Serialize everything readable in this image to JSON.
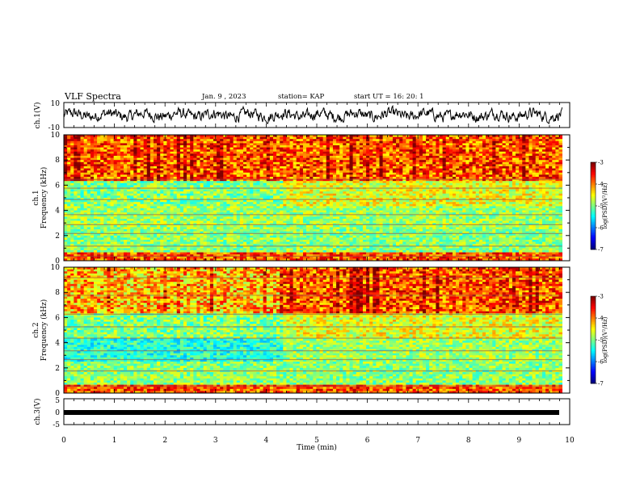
{
  "header": {
    "title": "VLF Spectra",
    "date": "Jan. 9 , 2023",
    "station": "station= KAP",
    "start": "start UT = 16: 20: 1"
  },
  "chart_data": [
    {
      "type": "line",
      "panel": "ch1-waveform",
      "ylabel": "ch.1(V)",
      "ylim": [
        -10,
        10
      ],
      "yticks": [
        "10",
        "-10"
      ],
      "xlim": [
        0,
        9.85
      ],
      "series": [
        {
          "values_note": "noisy waveform",
          "mean": 0,
          "range": [
            -6,
            6
          ]
        }
      ]
    },
    {
      "type": "heatmap",
      "panel": "ch1-spectrogram",
      "ylabel_top": "ch.1",
      "ylabel": "Frequency (kHz)",
      "ylim": [
        0,
        10
      ],
      "yticks": [
        "0",
        "2",
        "4",
        "6",
        "8",
        "10"
      ],
      "colorbar": {
        "label": "log(PSD)(V²/Hz)",
        "ticks": [
          "-3",
          "-4",
          "-5",
          "-6",
          "-7"
        ],
        "range": [
          -7,
          -3
        ]
      },
      "transition_min": 4.35
    },
    {
      "type": "heatmap",
      "panel": "ch2-spectrogram",
      "ylabel_top": "ch.2",
      "ylabel": "Frequency (kHz)",
      "ylim": [
        0,
        10
      ],
      "yticks": [
        "0",
        "2",
        "4",
        "6",
        "8",
        "10"
      ],
      "colorbar": {
        "label": "log(PSD)(V²/Hz)",
        "ticks": [
          "-3",
          "-4",
          "-5",
          "-6",
          "-7"
        ],
        "range": [
          -7,
          -3
        ]
      },
      "transition_min": 4.35
    },
    {
      "type": "line",
      "panel": "ch3-waveform",
      "ylabel": "ch.3(V)",
      "ylim": [
        -5,
        5
      ],
      "yticks": [
        "5",
        "0",
        "-5"
      ],
      "series": [
        {
          "values_note": "near-constant band",
          "mean": 0,
          "range": [
            -0.5,
            0.5
          ]
        }
      ]
    }
  ],
  "xaxis": {
    "label": "Time (min)",
    "ticks": [
      "0",
      "1",
      "2",
      "3",
      "4",
      "5",
      "6",
      "7",
      "8",
      "9",
      "10"
    ],
    "xlim": [
      0,
      10
    ]
  }
}
